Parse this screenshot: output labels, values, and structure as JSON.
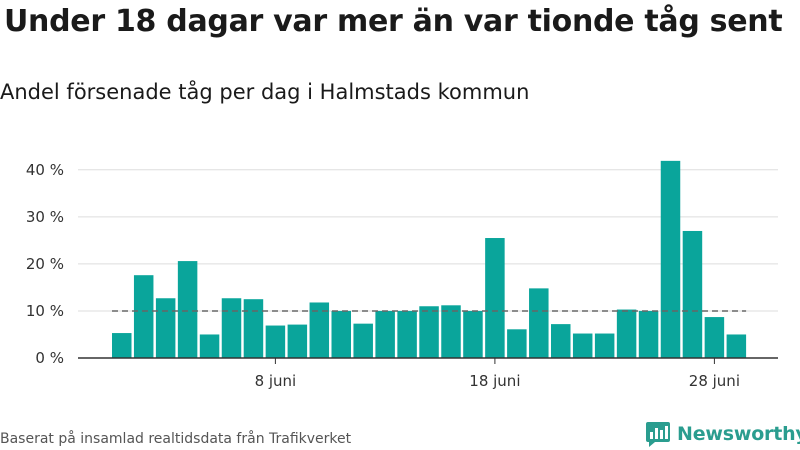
{
  "title": "Under 18 dagar var mer än var tionde tåg sent",
  "subtitle": "Andel försenade tåg per dag i Halmstads kommun",
  "source": "Baserat på insamlad realtidsdata från Trafikverket",
  "brand": "Newsworthy",
  "colors": {
    "bar": "#0aa59b",
    "grid": "#dddddd",
    "reference": "#666666",
    "brand": "#2a9d8f"
  },
  "chart_data": {
    "type": "bar",
    "x": [
      "2019-06-01",
      "2019-06-02",
      "2019-06-03",
      "2019-06-04",
      "2019-06-05",
      "2019-06-06",
      "2019-06-07",
      "2019-06-08",
      "2019-06-09",
      "2019-06-10",
      "2019-06-11",
      "2019-06-12",
      "2019-06-13",
      "2019-06-14",
      "2019-06-15",
      "2019-06-16",
      "2019-06-17",
      "2019-06-18",
      "2019-06-19",
      "2019-06-20",
      "2019-06-21",
      "2019-06-22",
      "2019-06-23",
      "2019-06-24",
      "2019-06-25",
      "2019-06-26",
      "2019-06-27",
      "2019-06-28",
      "2019-06-29"
    ],
    "values": [
      5.3,
      17.6,
      12.7,
      20.6,
      5.0,
      12.7,
      12.5,
      6.9,
      7.1,
      11.8,
      10.0,
      7.3,
      10.0,
      10.0,
      11.0,
      11.2,
      10.0,
      25.5,
      6.1,
      14.8,
      7.2,
      5.2,
      5.2,
      10.3,
      10.0,
      41.9,
      27.0,
      8.7,
      5.0
    ],
    "reference_line": 10,
    "xticks": [
      {
        "value": "2019-06-08",
        "label": "8 juni"
      },
      {
        "value": "2019-06-18",
        "label": "18 juni"
      },
      {
        "value": "2019-06-28",
        "label": "28 juni"
      }
    ],
    "yticks": [
      {
        "value": 0,
        "label": "0 %"
      },
      {
        "value": 10,
        "label": "10 %"
      },
      {
        "value": 20,
        "label": "20 %"
      },
      {
        "value": 30,
        "label": "30 %"
      },
      {
        "value": 40,
        "label": "40 %"
      }
    ],
    "ylim": [
      0,
      45
    ],
    "xlabel": "",
    "ylabel": "",
    "grid": true,
    "legend": "none"
  }
}
